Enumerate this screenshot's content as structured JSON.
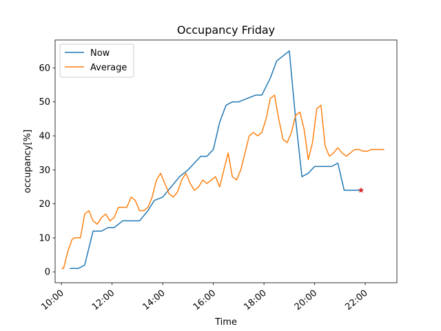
{
  "chart_data": {
    "type": "line",
    "title": "Occupancy Friday",
    "xlabel": "Time",
    "ylabel": "occupancy[%]",
    "x_ticks": [
      "10:00",
      "12:00",
      "14:00",
      "16:00",
      "18:00",
      "20:00",
      "22:00"
    ],
    "y_ticks": [
      0,
      10,
      20,
      30,
      40,
      50,
      60
    ],
    "xlim": [
      "09:45",
      "23:15"
    ],
    "ylim": [
      -3.2,
      68.2
    ],
    "grid": false,
    "legend_position": "top-left",
    "series": [
      {
        "name": "Now",
        "color": "#1f77b4",
        "x": [
          "10:20",
          "10:40",
          "10:55",
          "11:15",
          "11:35",
          "11:50",
          "12:05",
          "12:25",
          "12:50",
          "13:05",
          "13:25",
          "13:40",
          "14:00",
          "14:20",
          "14:40",
          "15:00",
          "15:15",
          "15:30",
          "15:45",
          "16:00",
          "16:15",
          "16:30",
          "16:45",
          "17:00",
          "17:20",
          "17:40",
          "17:55",
          "18:15",
          "18:30",
          "18:50",
          "19:00",
          "19:15",
          "19:30",
          "19:45",
          "20:00",
          "20:20",
          "20:40",
          "20:55",
          "21:10",
          "21:30",
          "21:50"
        ],
        "values": [
          1,
          1,
          2,
          12,
          12,
          13,
          13,
          15,
          15,
          15,
          18,
          21,
          22,
          25,
          28,
          30,
          32,
          34,
          34,
          36,
          44,
          49,
          50,
          50,
          51,
          52,
          52,
          57,
          62,
          64,
          65,
          45,
          28,
          29,
          31,
          31,
          31,
          32,
          24,
          24,
          24
        ]
      },
      {
        "name": "Average",
        "color": "#ff7f0e",
        "x": [
          "10:00",
          "10:05",
          "10:15",
          "10:25",
          "10:30",
          "10:45",
          "10:55",
          "11:05",
          "11:15",
          "11:25",
          "11:35",
          "11:45",
          "11:55",
          "12:05",
          "12:15",
          "12:25",
          "12:35",
          "12:45",
          "12:55",
          "13:05",
          "13:15",
          "13:25",
          "13:35",
          "13:45",
          "13:55",
          "14:05",
          "14:15",
          "14:25",
          "14:35",
          "14:45",
          "14:55",
          "15:05",
          "15:15",
          "15:25",
          "15:35",
          "15:45",
          "15:55",
          "16:05",
          "16:15",
          "16:25",
          "16:35",
          "16:45",
          "16:55",
          "17:05",
          "17:15",
          "17:25",
          "17:35",
          "17:45",
          "17:55",
          "18:05",
          "18:15",
          "18:25",
          "18:35",
          "18:45",
          "18:55",
          "19:05",
          "19:15",
          "19:25",
          "19:35",
          "19:45",
          "19:55",
          "20:05",
          "20:15",
          "20:25",
          "20:35",
          "20:45",
          "20:55",
          "21:05",
          "21:15",
          "21:25",
          "21:35",
          "21:45",
          "21:55",
          "22:05",
          "22:15",
          "22:25",
          "22:35",
          "22:45"
        ],
        "values": [
          1,
          1,
          6,
          9.5,
          10,
          10,
          17,
          18,
          15,
          14,
          16,
          17,
          15,
          16,
          19,
          19,
          19,
          22,
          21,
          18,
          18,
          19,
          22,
          27,
          29,
          26,
          23,
          22,
          23.5,
          27,
          29,
          26,
          24,
          25,
          27,
          26,
          27,
          28,
          25,
          30,
          35,
          28,
          27,
          30,
          35,
          40,
          41,
          40,
          41,
          45,
          51,
          52,
          45,
          39,
          38,
          41,
          46,
          47,
          42,
          33,
          38,
          48,
          49,
          37,
          34,
          35,
          36.5,
          35,
          34,
          35,
          36,
          36,
          35.5,
          35.5,
          36,
          36,
          36,
          36
        ]
      }
    ],
    "marker": {
      "x": "21:50",
      "y": 24,
      "color": "#d62728",
      "shape": "star"
    }
  }
}
